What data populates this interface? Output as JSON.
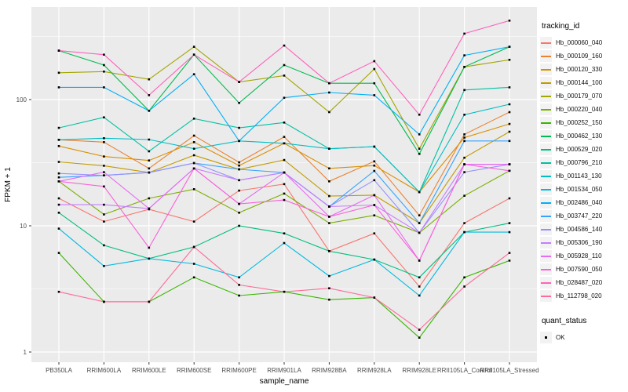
{
  "figure": {
    "background": "#FFFFFF",
    "panel_background": "#EBEBEB",
    "grid_color": "#FFFFFF",
    "tick_label_color": "#4D4D4D",
    "axis_title_color": "#000000"
  },
  "chart_data": {
    "type": "line",
    "title": "",
    "xlabel": "sample_name",
    "ylabel": "FPKM + 1",
    "y_scale": "log10",
    "y_ticks": [
      1,
      10,
      100
    ],
    "y_minor_ticks": [
      3.162,
      31.62,
      316.2
    ],
    "ylim": [
      0.83,
      530
    ],
    "grid": true,
    "legend_position": "right",
    "point_shape": "square",
    "point_color": "#000000",
    "categories": [
      "PB350LA",
      "RRIM600LA",
      "RRIM600LE",
      "RRIM600SE",
      "RRIM600PE",
      "RRIM901LA",
      "RRIM928BA",
      "RRIM928LA",
      "RRIM928LE",
      "RRII105LA_Control",
      "RRII105LA_Stressed"
    ],
    "series": [
      {
        "name": "Hb_000060_040",
        "color": "#F8766D",
        "values": [
          16.5,
          10.8,
          13.5,
          10.8,
          19.0,
          21.4,
          6.3,
          8.7,
          3.3,
          10.5,
          16.5
        ]
      },
      {
        "name": "Hb_000109_160",
        "color": "#EA8331",
        "values": [
          48.0,
          46.0,
          28.5,
          51.8,
          31.8,
          50.6,
          22.5,
          32.4,
          12.1,
          53.0,
          79.6
        ]
      },
      {
        "name": "Hb_000120_330",
        "color": "#D89000",
        "values": [
          42.8,
          35.4,
          32.9,
          46.0,
          30.0,
          45.0,
          28.5,
          30.0,
          18.5,
          50.0,
          64.1
        ]
      },
      {
        "name": "Hb_000144_100",
        "color": "#C09B00",
        "values": [
          32.1,
          29.9,
          26.4,
          36.2,
          28.0,
          33.2,
          17.2,
          17.5,
          10.5,
          34.6,
          55.6
        ]
      },
      {
        "name": "Hb_000179_070",
        "color": "#A3A500",
        "values": [
          163.0,
          166.7,
          144.6,
          262.0,
          137.7,
          155.0,
          79.6,
          174.6,
          40.8,
          181.6,
          206.5
        ]
      },
      {
        "name": "Hb_000220_040",
        "color": "#7CAE00",
        "values": [
          22.5,
          12.3,
          16.5,
          19.5,
          12.7,
          18.0,
          10.5,
          12.1,
          8.8,
          17.3,
          27.3
        ]
      },
      {
        "name": "Hb_000252_150",
        "color": "#39B600",
        "values": [
          6.1,
          2.5,
          2.5,
          3.9,
          2.8,
          3.0,
          2.6,
          2.7,
          1.3,
          3.9,
          5.3
        ]
      },
      {
        "name": "Hb_000462_130",
        "color": "#00BB4E",
        "values": [
          244.0,
          187.5,
          81.5,
          227.0,
          94.0,
          187.5,
          134.6,
          134.6,
          37.1,
          181.6,
          262.0
        ]
      },
      {
        "name": "Hb_000529_020",
        "color": "#00BF7D",
        "values": [
          12.7,
          7.0,
          5.5,
          6.8,
          10.0,
          8.7,
          6.3,
          5.4,
          3.9,
          8.9,
          10.5
        ]
      },
      {
        "name": "Hb_000796_210",
        "color": "#00C1A3",
        "values": [
          59.7,
          72.3,
          38.9,
          70.6,
          59.7,
          65.8,
          40.8,
          42.4,
          18.5,
          119.0,
          125.0
        ]
      },
      {
        "name": "Hb_001143_130",
        "color": "#00BFC4",
        "values": [
          48.0,
          49.4,
          48.2,
          40.8,
          47.0,
          45.0,
          40.8,
          42.4,
          18.5,
          75.9,
          91.8
        ]
      },
      {
        "name": "Hb_001534_050",
        "color": "#00BAE0",
        "values": [
          9.5,
          4.8,
          5.5,
          5.0,
          3.9,
          7.3,
          4.0,
          5.4,
          2.8,
          8.9,
          8.9
        ]
      },
      {
        "name": "Hb_002486_040",
        "color": "#00B0F6",
        "values": [
          125.0,
          125.0,
          81.5,
          158.7,
          47.0,
          103.3,
          113.8,
          108.4,
          53.0,
          224.0,
          262.0
        ]
      },
      {
        "name": "Hb_003747_220",
        "color": "#35A2FF",
        "values": [
          24.2,
          25.1,
          26.4,
          31.4,
          28.0,
          26.4,
          14.2,
          27.2,
          10.5,
          47.0,
          47.0
        ]
      },
      {
        "name": "Hb_004586_140",
        "color": "#9590FF",
        "values": [
          26.0,
          25.1,
          26.4,
          31.4,
          23.0,
          26.4,
          14.2,
          23.0,
          8.8,
          26.6,
          30.7
        ]
      },
      {
        "name": "Hb_005306_190",
        "color": "#C77CFF",
        "values": [
          14.7,
          14.7,
          13.7,
          28.5,
          23.0,
          26.4,
          14.2,
          14.6,
          8.8,
          30.7,
          30.7
        ]
      },
      {
        "name": "Hb_005928_110",
        "color": "#E76BF3",
        "values": [
          22.5,
          26.6,
          13.7,
          28.5,
          14.9,
          26.4,
          11.8,
          17.5,
          5.3,
          30.7,
          30.7
        ]
      },
      {
        "name": "Hb_007590_050",
        "color": "#FA62DB",
        "values": [
          22.5,
          20.5,
          6.7,
          28.5,
          14.9,
          16.0,
          11.8,
          14.6,
          5.3,
          30.7,
          27.3
        ]
      },
      {
        "name": "Hb_028487_020",
        "color": "#FF62BC",
        "values": [
          244.0,
          227.0,
          108.4,
          227.0,
          137.7,
          268.0,
          134.6,
          201.5,
          75.9,
          333.0,
          422.0
        ]
      },
      {
        "name": "Hb_112798_020",
        "color": "#FF6A98",
        "values": [
          3.0,
          2.5,
          2.5,
          6.8,
          3.4,
          3.0,
          3.2,
          2.7,
          1.5,
          3.3,
          6.1
        ]
      }
    ]
  },
  "legend": {
    "tracking_title": "tracking_id",
    "quant_title": "quant_status",
    "quant_items": [
      {
        "label": "OK"
      }
    ]
  }
}
